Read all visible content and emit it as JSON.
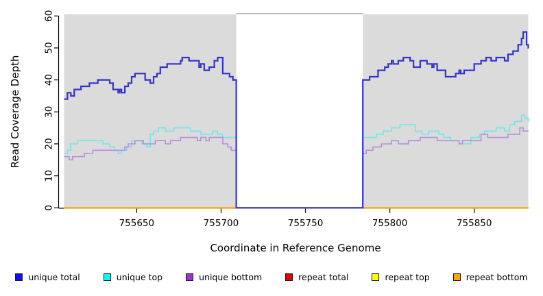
{
  "chart_data": {
    "type": "line",
    "step": true,
    "title": "",
    "xlabel": "Coordinate in Reference Genome",
    "ylabel": "Read Coverage Depth",
    "xlim": [
      755607,
      755882
    ],
    "ylim": [
      0,
      60
    ],
    "xticks": [
      755650,
      755700,
      755750,
      755800,
      755850
    ],
    "yticks": [
      0,
      10,
      20,
      30,
      40,
      50,
      60
    ],
    "grid": false,
    "plot_bg": "#DBDBDB",
    "gap_region": {
      "x_start": 755709,
      "x_end": 755784,
      "fill": "#FFFFFF",
      "top_border": "#A6A6A6"
    },
    "legend_position": "bottom",
    "series": [
      {
        "name": "repeat total",
        "color": "#E60000",
        "swatch": "#E60000",
        "width": 1.6,
        "points": [
          [
            755607,
            0
          ],
          [
            755882,
            0
          ]
        ]
      },
      {
        "name": "repeat top",
        "color": "#FFFF00",
        "swatch": "#FFFF00",
        "width": 1.6,
        "points": [
          [
            755607,
            0
          ],
          [
            755882,
            0
          ]
        ]
      },
      {
        "name": "repeat bottom",
        "color": "#FFA500",
        "swatch": "#FFA500",
        "width": 2.2,
        "points": [
          [
            755607,
            0
          ],
          [
            755882,
            0
          ]
        ]
      },
      {
        "name": "unique top",
        "color": "#6EE6E8",
        "swatch": "#00FFFF",
        "width": 1.6,
        "points": [
          [
            755607,
            17
          ],
          [
            755609,
            18
          ],
          [
            755611,
            20
          ],
          [
            755615,
            21
          ],
          [
            755630,
            20
          ],
          [
            755634,
            19
          ],
          [
            755637,
            18
          ],
          [
            755639,
            17
          ],
          [
            755641,
            18
          ],
          [
            755644,
            19
          ],
          [
            755647,
            21
          ],
          [
            755653,
            20
          ],
          [
            755656,
            19
          ],
          [
            755658,
            23
          ],
          [
            755660,
            24
          ],
          [
            755663,
            25
          ],
          [
            755667,
            24
          ],
          [
            755672,
            25
          ],
          [
            755682,
            24
          ],
          [
            755688,
            23
          ],
          [
            755695,
            24
          ],
          [
            755698,
            23
          ],
          [
            755701,
            22
          ],
          [
            755709,
            0
          ],
          [
            755784,
            22
          ],
          [
            755792,
            23
          ],
          [
            755796,
            24
          ],
          [
            755801,
            25
          ],
          [
            755806,
            26
          ],
          [
            755815,
            24
          ],
          [
            755819,
            23
          ],
          [
            755823,
            24
          ],
          [
            755829,
            23
          ],
          [
            755832,
            22
          ],
          [
            755836,
            21
          ],
          [
            755841,
            20
          ],
          [
            755848,
            22
          ],
          [
            755853,
            23
          ],
          [
            755856,
            24
          ],
          [
            755863,
            25
          ],
          [
            755868,
            24
          ],
          [
            755871,
            26
          ],
          [
            755874,
            27
          ],
          [
            755878,
            29
          ],
          [
            755880,
            28
          ],
          [
            755882,
            27
          ]
        ]
      },
      {
        "name": "unique bottom",
        "color": "#B48CDE",
        "swatch": "#9933CC",
        "width": 1.6,
        "points": [
          [
            755607,
            16
          ],
          [
            755610,
            15
          ],
          [
            755612,
            16
          ],
          [
            755619,
            17
          ],
          [
            755624,
            18
          ],
          [
            755643,
            19
          ],
          [
            755645,
            20
          ],
          [
            755649,
            21
          ],
          [
            755654,
            20
          ],
          [
            755661,
            21
          ],
          [
            755667,
            20
          ],
          [
            755670,
            21
          ],
          [
            755676,
            22
          ],
          [
            755686,
            21
          ],
          [
            755688,
            22
          ],
          [
            755691,
            21
          ],
          [
            755693,
            22
          ],
          [
            755701,
            20
          ],
          [
            755704,
            19
          ],
          [
            755706,
            18
          ],
          [
            755709,
            0
          ],
          [
            755784,
            17
          ],
          [
            755786,
            18
          ],
          [
            755790,
            19
          ],
          [
            755795,
            20
          ],
          [
            755801,
            21
          ],
          [
            755805,
            20
          ],
          [
            755811,
            21
          ],
          [
            755818,
            22
          ],
          [
            755828,
            21
          ],
          [
            755841,
            20
          ],
          [
            755843,
            21
          ],
          [
            755854,
            23
          ],
          [
            755858,
            22
          ],
          [
            755863,
            22
          ],
          [
            755870,
            23
          ],
          [
            755876,
            23
          ],
          [
            755877,
            25
          ],
          [
            755879,
            24
          ],
          [
            755882,
            24
          ]
        ]
      },
      {
        "name": "unique total",
        "color": "#3333CC",
        "swatch": "#1010EE",
        "width": 2.2,
        "points": [
          [
            755607,
            34
          ],
          [
            755609,
            36
          ],
          [
            755611,
            35
          ],
          [
            755613,
            37
          ],
          [
            755617,
            38
          ],
          [
            755622,
            39
          ],
          [
            755627,
            40
          ],
          [
            755634,
            39
          ],
          [
            755636,
            37
          ],
          [
            755639,
            36
          ],
          [
            755640,
            37
          ],
          [
            755641,
            36
          ],
          [
            755643,
            38
          ],
          [
            755645,
            39
          ],
          [
            755647,
            41
          ],
          [
            755649,
            42
          ],
          [
            755655,
            40
          ],
          [
            755658,
            39
          ],
          [
            755660,
            41
          ],
          [
            755662,
            42
          ],
          [
            755664,
            44
          ],
          [
            755668,
            45
          ],
          [
            755676,
            46
          ],
          [
            755677,
            47
          ],
          [
            755681,
            46
          ],
          [
            755687,
            44
          ],
          [
            755688,
            45
          ],
          [
            755690,
            43
          ],
          [
            755693,
            44
          ],
          [
            755696,
            46
          ],
          [
            755698,
            47
          ],
          [
            755701,
            42
          ],
          [
            755705,
            41
          ],
          [
            755707,
            40
          ],
          [
            755709,
            0
          ],
          [
            755784,
            40
          ],
          [
            755788,
            41
          ],
          [
            755793,
            43
          ],
          [
            755797,
            44
          ],
          [
            755799,
            45
          ],
          [
            755801,
            46
          ],
          [
            755802,
            45
          ],
          [
            755805,
            46
          ],
          [
            755808,
            47
          ],
          [
            755812,
            46
          ],
          [
            755814,
            44
          ],
          [
            755818,
            46
          ],
          [
            755822,
            45
          ],
          [
            755825,
            44
          ],
          [
            755826,
            45
          ],
          [
            755828,
            43
          ],
          [
            755833,
            41
          ],
          [
            755839,
            42
          ],
          [
            755841,
            43
          ],
          [
            755842,
            42
          ],
          [
            755844,
            43
          ],
          [
            755850,
            45
          ],
          [
            755854,
            46
          ],
          [
            755857,
            47
          ],
          [
            755860,
            46
          ],
          [
            755863,
            47
          ],
          [
            755868,
            46
          ],
          [
            755870,
            48
          ],
          [
            755873,
            49
          ],
          [
            755876,
            51
          ],
          [
            755878,
            53
          ],
          [
            755879,
            55
          ],
          [
            755881,
            51
          ],
          [
            755882,
            50
          ]
        ]
      }
    ],
    "legend": [
      {
        "label": "unique total",
        "fill": "#1010EE"
      },
      {
        "label": "unique top",
        "fill": "#00FFFF"
      },
      {
        "label": "unique bottom",
        "fill": "#9933CC"
      },
      {
        "label": "repeat total",
        "fill": "#E60000"
      },
      {
        "label": "repeat top",
        "fill": "#FFFF00"
      },
      {
        "label": "repeat bottom",
        "fill": "#FFA500"
      }
    ]
  }
}
